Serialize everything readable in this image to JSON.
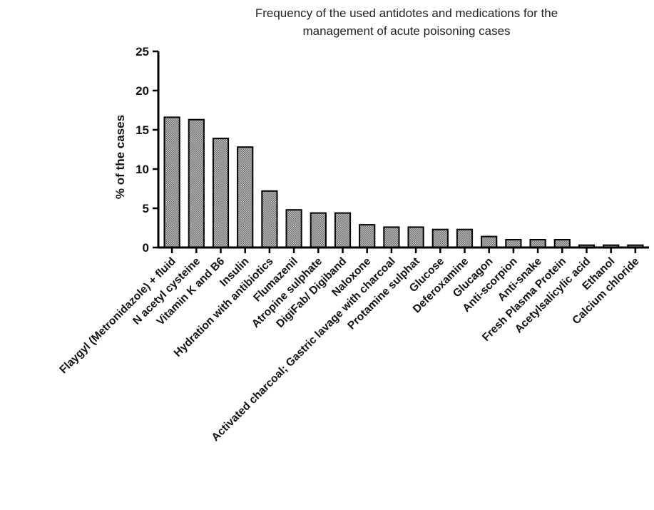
{
  "chart_data": {
    "type": "bar",
    "title_lines": [
      "Frequency of the used antidotes and medications for the",
      "management of acute poisoning cases"
    ],
    "xlabel": "",
    "ylabel": "% of the cases",
    "ylim": [
      0,
      25
    ],
    "yticks": [
      "0",
      "5",
      "10",
      "15",
      "20",
      "25"
    ],
    "grid": false,
    "legend": "none",
    "bar_color": "#a8a8a8",
    "categories": [
      "Flaygyl (Metronidazole) + fluid",
      "N acetyl cysteine",
      "Vitamin K and B6",
      "Insulin",
      "Hydration with antibiotics",
      "Flumazenil",
      "Atropine sulphate",
      "DigiFab/ Digiband",
      "Naloxone",
      "Activated charcoal; Gastric lavage with charcoal",
      "Protamine sulphat",
      "Glucose",
      "Deferoxamine",
      "Glucagon",
      "Anti-scorpion",
      "Anti-snake",
      "Fresh Plasma Protein",
      "Acetylsalicylic acid",
      "Ethanol",
      "Calcium chloride"
    ],
    "values": [
      16.6,
      16.3,
      13.9,
      12.8,
      7.2,
      4.8,
      4.4,
      4.4,
      2.9,
      2.6,
      2.6,
      2.3,
      2.3,
      1.4,
      1.0,
      1.0,
      1.0,
      0.3,
      0.3,
      0.3
    ]
  }
}
